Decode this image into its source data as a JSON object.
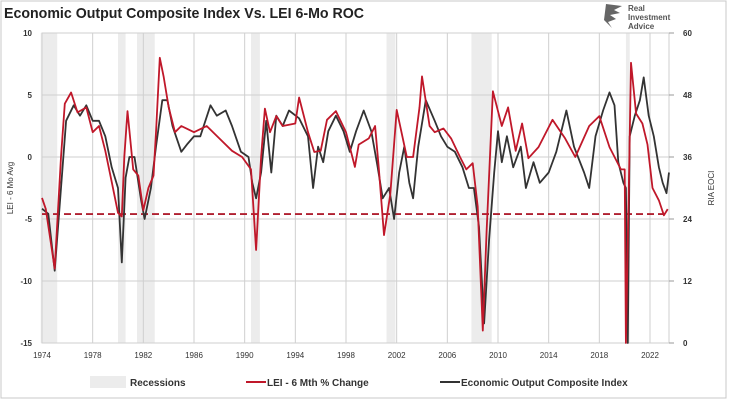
{
  "chart_data": {
    "type": "line",
    "title": "Economic Output Composite Index Vs. LEI 6-Mo ROC",
    "logo": {
      "lines": [
        "Real",
        "Investment",
        "Advice"
      ]
    },
    "ylabel": "LEI - 6 Mo Avg",
    "y2label": "RIA EOCI",
    "xlim": [
      1974,
      2023.5
    ],
    "ylim": [
      -15,
      10
    ],
    "y2lim": [
      0,
      60
    ],
    "xticks": [
      "1974",
      "1978",
      "1982",
      "1986",
      "1990",
      "1994",
      "1998",
      "2002",
      "2006",
      "2010",
      "2014",
      "2018",
      "2022"
    ],
    "yticks": [
      "10",
      "5",
      "0",
      "-5",
      "-10",
      "-15"
    ],
    "y2ticks": [
      "60",
      "48",
      "36",
      "24",
      "12",
      "0"
    ],
    "grid": true,
    "legend_position": "bottom",
    "legend": [
      "Recessions",
      "LEI - 6 Mth % Change",
      "Economic Output Composite Index"
    ],
    "colors": {
      "lei": "#c0182a",
      "eoci": "#333333",
      "recession": "#ececec",
      "threshold": "#b02030",
      "grid": "#cfcfcf"
    },
    "threshold": {
      "axis": "left",
      "value": -4.6,
      "style": "dashed"
    },
    "recessions": [
      [
        1973.9,
        1975.2
      ],
      [
        1980.0,
        1980.6
      ],
      [
        1981.5,
        1982.9
      ],
      [
        1990.5,
        1991.2
      ],
      [
        2001.2,
        2001.9
      ],
      [
        2007.9,
        2009.5
      ],
      [
        2020.1,
        2020.4
      ]
    ],
    "series": [
      {
        "name": "LEI - 6 Mth % Change",
        "axis": "left",
        "x": [
          1974.0,
          1974.3,
          1975.0,
          1975.5,
          1975.8,
          1976.3,
          1976.8,
          1977.5,
          1978.0,
          1978.5,
          1979.0,
          1979.5,
          1980.0,
          1980.3,
          1980.5,
          1980.75,
          1981.2,
          1981.6,
          1982.0,
          1982.4,
          1982.8,
          1983.0,
          1983.3,
          1983.6,
          1984.0,
          1984.5,
          1985.0,
          1986.0,
          1987.0,
          1988.0,
          1989.0,
          1989.8,
          1990.5,
          1990.9,
          1991.3,
          1991.6,
          1992.0,
          1992.5,
          1993.0,
          1994.0,
          1994.3,
          1995.0,
          1995.5,
          1996.0,
          1996.5,
          1997.2,
          1998.0,
          1998.7,
          1999.0,
          1999.8,
          2000.3,
          2000.6,
          2001.0,
          2001.5,
          2002.0,
          2002.8,
          2003.3,
          2003.8,
          2004.0,
          2004.6,
          2005.0,
          2005.7,
          2006.3,
          2007.0,
          2007.5,
          2008.0,
          2008.4,
          2008.8,
          2009.1,
          2009.6,
          2010.3,
          2010.8,
          2011.4,
          2011.9,
          2012.4,
          2013.2,
          2014.3,
          2015.3,
          2016.1,
          2017.2,
          2018.0,
          2018.8,
          2019.7,
          2020.0,
          2020.1,
          2020.3,
          2020.5,
          2020.9,
          2021.4,
          2021.8,
          2022.2,
          2022.7,
          2023.1,
          2023.4
        ],
        "values": [
          -3.3,
          -4.2,
          -9.0,
          0.0,
          4.3,
          5.2,
          3.6,
          4.0,
          2.0,
          2.5,
          0.5,
          -2.0,
          -4.5,
          -4.8,
          0.0,
          3.7,
          -1.0,
          -1.5,
          -4.3,
          -2.5,
          -1.5,
          2.0,
          8.0,
          6.5,
          4.0,
          2.0,
          2.5,
          2.0,
          2.5,
          1.5,
          0.5,
          0.0,
          -1.0,
          -7.5,
          0.0,
          3.9,
          2.0,
          3.3,
          2.5,
          2.7,
          4.8,
          2.0,
          0.4,
          0.5,
          3.0,
          3.7,
          2.0,
          -0.8,
          1.0,
          1.5,
          2.5,
          -1.0,
          -6.3,
          -3.0,
          3.8,
          0.0,
          0.0,
          4.0,
          6.5,
          2.5,
          2.0,
          2.3,
          1.5,
          0.0,
          -1.0,
          -0.5,
          -4.0,
          -14.0,
          -6.0,
          5.3,
          2.5,
          4.0,
          0.5,
          2.7,
          -0.1,
          0.8,
          3.0,
          1.5,
          0.0,
          2.5,
          3.3,
          0.8,
          -1.0,
          -1.0,
          -15.0,
          -4.0,
          7.6,
          3.5,
          2.7,
          1.0,
          -2.5,
          -3.5,
          -4.7,
          -4.2
        ]
      },
      {
        "name": "Economic Output Composite Index",
        "axis": "right",
        "x": [
          1974.0,
          1974.5,
          1975.0,
          1975.5,
          1975.9,
          1976.5,
          1977.0,
          1977.5,
          1978.0,
          1978.5,
          1979.0,
          1979.5,
          1980.0,
          1980.3,
          1980.6,
          1980.9,
          1981.3,
          1981.8,
          1982.1,
          1982.6,
          1983.0,
          1983.5,
          1983.9,
          1984.3,
          1985.0,
          1985.5,
          1986.0,
          1986.5,
          1987.3,
          1987.8,
          1988.5,
          1989.0,
          1989.7,
          1990.3,
          1990.6,
          1990.9,
          1991.3,
          1991.7,
          1992.1,
          1992.5,
          1993.0,
          1993.5,
          1994.3,
          1995.0,
          1995.4,
          1995.8,
          1996.2,
          1996.6,
          1997.2,
          1997.8,
          1998.3,
          1998.8,
          1999.4,
          2000.0,
          2000.5,
          2000.9,
          2001.4,
          2001.8,
          2002.2,
          2002.6,
          2003.0,
          2003.3,
          2003.7,
          2004.3,
          2005.0,
          2005.5,
          2006.0,
          2006.6,
          2007.2,
          2007.7,
          2008.1,
          2008.5,
          2008.9,
          2009.3,
          2009.7,
          2010.0,
          2010.3,
          2010.7,
          2011.2,
          2011.8,
          2012.2,
          2012.8,
          2013.3,
          2014.0,
          2014.6,
          2015.4,
          2016.0,
          2016.8,
          2017.2,
          2017.7,
          2018.3,
          2018.8,
          2019.2,
          2019.5,
          2019.9,
          2020.1,
          2020.25,
          2020.4,
          2020.8,
          2021.2,
          2021.5,
          2021.9,
          2022.3,
          2022.7,
          2023.0,
          2023.3,
          2023.5
        ],
        "values": [
          26,
          25,
          14,
          30,
          43,
          46,
          44,
          46,
          43,
          43,
          40,
          34,
          30,
          15.6,
          32,
          36,
          36,
          28,
          24,
          30,
          38,
          47,
          47,
          42,
          37,
          38.6,
          40,
          40,
          46,
          44,
          45,
          42,
          37,
          36,
          31,
          28,
          33,
          43,
          33,
          44,
          42,
          45,
          43.5,
          40,
          30,
          38,
          35,
          41,
          44,
          41,
          37,
          41,
          45,
          41,
          34,
          28,
          30,
          24,
          33,
          38,
          31,
          28,
          38,
          47,
          43,
          40,
          38,
          37,
          34,
          30,
          30,
          22.5,
          3.8,
          20,
          33,
          41,
          35,
          40,
          34,
          38,
          30,
          35,
          31,
          33,
          37,
          45,
          38,
          33,
          30,
          40,
          45,
          48.5,
          46,
          35,
          31,
          30,
          0,
          40,
          44,
          47,
          51.4,
          44,
          40,
          34,
          31,
          29,
          33
        ]
      }
    ]
  }
}
